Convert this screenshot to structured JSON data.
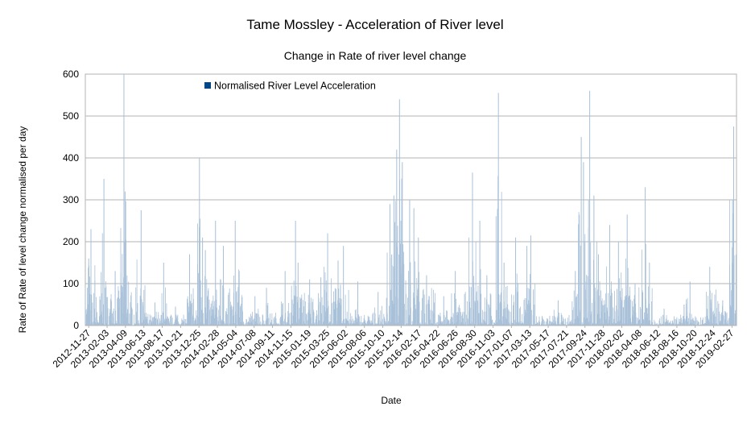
{
  "chart_data": {
    "type": "bar",
    "title": "Tame Mossley - Acceleration of River level",
    "subtitle": "Change in Rate of river level change",
    "xlabel": "Date",
    "ylabel": "Rate of Rate of level change normalised per day",
    "ylim": [
      0,
      600
    ],
    "yticks": [
      0,
      100,
      200,
      300,
      400,
      500,
      600
    ],
    "grid": true,
    "legend_position": "top-left",
    "series": [
      {
        "name": "Normalised River Level Acceleration",
        "color": "#004586",
        "fill": "#a8c0d8"
      }
    ],
    "x_categories": [
      "2012-11-27",
      "2013-02-03",
      "2013-04-09",
      "2013-06-13",
      "2013-08-17",
      "2013-10-21",
      "2013-12-25",
      "2014-02-28",
      "2014-05-04",
      "2014-07-08",
      "2014-09-11",
      "2014-11-15",
      "2015-01-19",
      "2015-03-25",
      "2015-06-02",
      "2015-08-06",
      "2015-10-10",
      "2015-12-14",
      "2016-02-17",
      "2016-04-22",
      "2016-06-26",
      "2016-08-30",
      "2016-11-03",
      "2017-01-07",
      "2017-03-13",
      "2017-05-17",
      "2017-07-21",
      "2017-09-24",
      "2017-11-28",
      "2018-02-02",
      "2018-04-08",
      "2018-06-12",
      "2018-08-16",
      "2018-10-20",
      "2018-12-24",
      "2019-02-27"
    ],
    "peaks": [
      {
        "date": "2012-11-27",
        "value": 160
      },
      {
        "date": "2012-12-05",
        "value": 230
      },
      {
        "date": "2013-01-20",
        "value": 350
      },
      {
        "date": "2013-03-01",
        "value": 130
      },
      {
        "date": "2013-04-01",
        "value": 600
      },
      {
        "date": "2013-04-05",
        "value": 320
      },
      {
        "date": "2013-06-01",
        "value": 275
      },
      {
        "date": "2013-07-20",
        "value": 55
      },
      {
        "date": "2013-08-20",
        "value": 150
      },
      {
        "date": "2013-10-01",
        "value": 45
      },
      {
        "date": "2013-11-20",
        "value": 170
      },
      {
        "date": "2013-12-25",
        "value": 400
      },
      {
        "date": "2014-01-05",
        "value": 210
      },
      {
        "date": "2014-01-15",
        "value": 180
      },
      {
        "date": "2014-02-20",
        "value": 250
      },
      {
        "date": "2014-03-20",
        "value": 190
      },
      {
        "date": "2014-05-01",
        "value": 250
      },
      {
        "date": "2014-05-15",
        "value": 130
      },
      {
        "date": "2014-07-10",
        "value": 70
      },
      {
        "date": "2014-08-20",
        "value": 90
      },
      {
        "date": "2014-10-25",
        "value": 130
      },
      {
        "date": "2014-12-01",
        "value": 250
      },
      {
        "date": "2014-12-10",
        "value": 150
      },
      {
        "date": "2015-01-20",
        "value": 110
      },
      {
        "date": "2015-03-01",
        "value": 115
      },
      {
        "date": "2015-03-25",
        "value": 220
      },
      {
        "date": "2015-05-01",
        "value": 155
      },
      {
        "date": "2015-05-20",
        "value": 190
      },
      {
        "date": "2015-07-10",
        "value": 105
      },
      {
        "date": "2015-09-20",
        "value": 80
      },
      {
        "date": "2015-11-01",
        "value": 290
      },
      {
        "date": "2015-11-15",
        "value": 310
      },
      {
        "date": "2015-11-25",
        "value": 420
      },
      {
        "date": "2015-12-05",
        "value": 540
      },
      {
        "date": "2015-12-15",
        "value": 390
      },
      {
        "date": "2016-01-10",
        "value": 300
      },
      {
        "date": "2016-01-25",
        "value": 280
      },
      {
        "date": "2016-02-10",
        "value": 210
      },
      {
        "date": "2016-03-10",
        "value": 120
      },
      {
        "date": "2016-05-10",
        "value": 70
      },
      {
        "date": "2016-06-20",
        "value": 130
      },
      {
        "date": "2016-08-20",
        "value": 365
      },
      {
        "date": "2016-09-15",
        "value": 250
      },
      {
        "date": "2016-10-10",
        "value": 120
      },
      {
        "date": "2016-11-20",
        "value": 555
      },
      {
        "date": "2016-12-10",
        "value": 150
      },
      {
        "date": "2017-01-20",
        "value": 210
      },
      {
        "date": "2017-03-01",
        "value": 190
      },
      {
        "date": "2017-03-15",
        "value": 215
      },
      {
        "date": "2017-06-20",
        "value": 60
      },
      {
        "date": "2017-08-20",
        "value": 130
      },
      {
        "date": "2017-09-10",
        "value": 450
      },
      {
        "date": "2017-09-18",
        "value": 390
      },
      {
        "date": "2017-10-10",
        "value": 560
      },
      {
        "date": "2017-10-25",
        "value": 310
      },
      {
        "date": "2017-11-10",
        "value": 170
      },
      {
        "date": "2017-12-20",
        "value": 240
      },
      {
        "date": "2018-01-20",
        "value": 200
      },
      {
        "date": "2018-02-20",
        "value": 265
      },
      {
        "date": "2018-03-20",
        "value": 100
      },
      {
        "date": "2018-04-25",
        "value": 330
      },
      {
        "date": "2018-05-10",
        "value": 150
      },
      {
        "date": "2018-07-01",
        "value": 40
      },
      {
        "date": "2018-09-10",
        "value": 50
      },
      {
        "date": "2018-10-01",
        "value": 105
      },
      {
        "date": "2018-12-10",
        "value": 140
      },
      {
        "date": "2019-01-25",
        "value": 60
      },
      {
        "date": "2019-02-20",
        "value": 100
      },
      {
        "date": "2019-03-01",
        "value": 300
      },
      {
        "date": "2019-03-05",
        "value": 475
      }
    ],
    "quiet_periods": [
      {
        "from": "2013-06-20",
        "to": "2013-11-10",
        "level": 25
      },
      {
        "from": "2014-06-01",
        "to": "2014-11-10",
        "level": 30
      },
      {
        "from": "2015-06-10",
        "to": "2015-10-20",
        "level": 30
      },
      {
        "from": "2016-04-15",
        "to": "2016-07-20",
        "level": 40
      },
      {
        "from": "2017-04-01",
        "to": "2017-08-10",
        "level": 25
      },
      {
        "from": "2018-05-20",
        "to": "2018-11-30",
        "level": 20
      }
    ],
    "date_start": "2012-11-15",
    "date_end": "2019-03-15"
  }
}
